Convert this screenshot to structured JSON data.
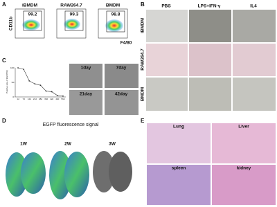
{
  "panel_a": {
    "label": "A",
    "y_axis": "CD11b",
    "x_axis": "F4/80",
    "plots": [
      {
        "name": "iBMDM",
        "value": "99.2"
      },
      {
        "name": "RAW264.7",
        "value": "99.3"
      },
      {
        "name": "BMDM",
        "value": "98.8"
      }
    ]
  },
  "panel_b": {
    "label": "B",
    "columns": [
      "PBS",
      "LPS+IFN-γ",
      "IL4"
    ],
    "rows": [
      "iBMDM",
      "RAW264.7",
      "BMDM"
    ]
  },
  "panel_c": {
    "label": "C",
    "images": [
      "1day",
      "7day",
      "21day",
      "42day"
    ]
  },
  "chart_data": {
    "type": "line",
    "y_label": "Positive rate of EGFP(%)",
    "categories": [
      "1d",
      "7d",
      "14d",
      "21d",
      "28d",
      "35d",
      "42d",
      "49d",
      "56d"
    ],
    "values": [
      100,
      95,
      55,
      45,
      40,
      20,
      18,
      5,
      3
    ],
    "ylim": [
      0,
      100
    ],
    "yticks": [
      0,
      50,
      100
    ],
    "color": "#333333"
  },
  "panel_d": {
    "label": "D",
    "title": "EGFP fluorescence signal",
    "images": [
      "1W",
      "2W",
      "3W"
    ]
  },
  "panel_e": {
    "label": "E",
    "images": [
      "Lung",
      "Liver",
      "spleen",
      "kidney"
    ]
  }
}
